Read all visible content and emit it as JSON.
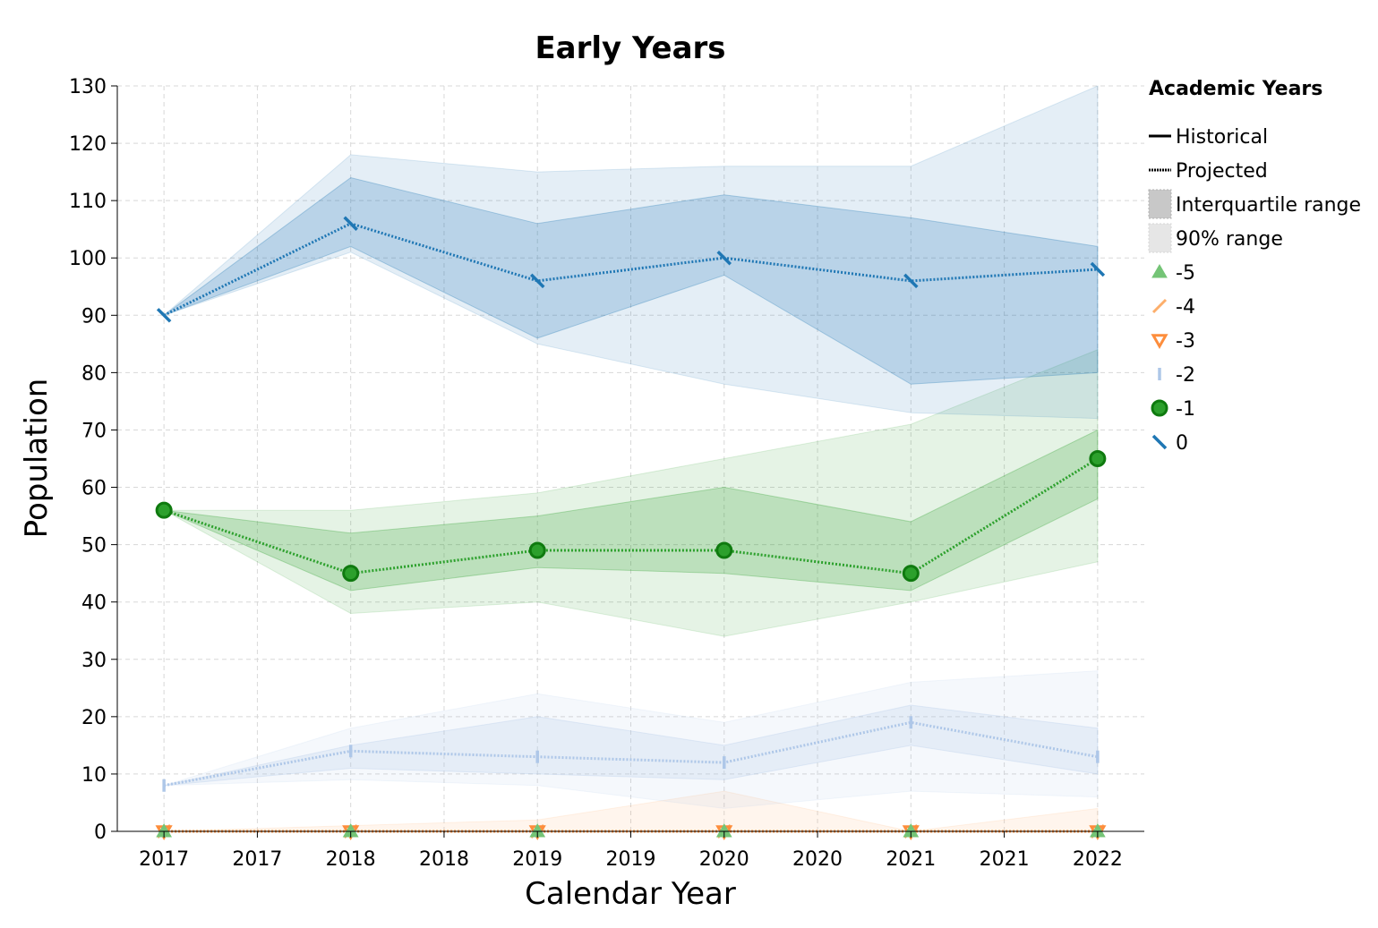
{
  "chart_data": {
    "type": "line",
    "title": "Early Years",
    "xlabel": "Calendar Year",
    "ylabel": "Population",
    "x": [
      2017,
      2018,
      2019,
      2020,
      2021,
      2022
    ],
    "x_tick_labels": [
      "2017",
      "2017",
      "2018",
      "2018",
      "2019",
      "2019",
      "2020",
      "2020",
      "2021",
      "2021",
      "2022"
    ],
    "y_ticks": [
      0,
      10,
      20,
      30,
      40,
      50,
      60,
      70,
      80,
      90,
      100,
      110,
      120,
      130
    ],
    "ylim": [
      0,
      130
    ],
    "xlim": [
      2016.75,
      2022.25
    ],
    "grid": true,
    "legend_placement": "right",
    "legend": {
      "title": "Academic Years",
      "style_entries": [
        "Historical",
        "Projected",
        "Interquartile range",
        "90% range"
      ]
    },
    "series": [
      {
        "name": "-5",
        "color": "#74c476",
        "marker": "triangle-up",
        "values": [
          0,
          0,
          0,
          0,
          0,
          0
        ],
        "iqr_low": [
          0,
          0,
          0,
          0,
          0,
          0
        ],
        "iqr_high": [
          0,
          0,
          0,
          0,
          0,
          0
        ],
        "p90_low": [
          0,
          0,
          0,
          0,
          0,
          0
        ],
        "p90_high": [
          0,
          0,
          0,
          0,
          0,
          0
        ]
      },
      {
        "name": "-4",
        "color": "#fdae6b",
        "marker": "slash",
        "values": [
          0,
          0,
          0,
          0,
          0,
          0
        ],
        "iqr_low": [
          0,
          0,
          0,
          0,
          0,
          0
        ],
        "iqr_high": [
          0,
          0,
          0,
          0,
          0,
          0
        ],
        "p90_low": [
          0,
          0,
          0,
          0,
          0,
          0
        ],
        "p90_high": [
          0,
          1,
          2,
          7,
          0,
          4
        ]
      },
      {
        "name": "-3",
        "color": "#fd8d3c",
        "marker": "triangle-down",
        "values": [
          0,
          0,
          0,
          0,
          0,
          0
        ],
        "iqr_low": [
          0,
          0,
          0,
          0,
          0,
          0
        ],
        "iqr_high": [
          0,
          0,
          0,
          0,
          0,
          0
        ],
        "p90_low": [
          0,
          0,
          0,
          0,
          0,
          0
        ],
        "p90_high": [
          0,
          0,
          0,
          0,
          0,
          0
        ]
      },
      {
        "name": "-2",
        "color": "#aec7e8",
        "marker": "vline",
        "values": [
          8,
          14,
          13,
          12,
          19,
          13
        ],
        "iqr_low": [
          8,
          11,
          10,
          9,
          15,
          10
        ],
        "iqr_high": [
          8,
          15,
          20,
          15,
          22,
          18
        ],
        "p90_low": [
          8,
          9,
          8,
          4,
          7,
          6
        ],
        "p90_high": [
          8,
          18,
          24,
          19,
          26,
          28
        ]
      },
      {
        "name": "-1",
        "color": "#2ca02c",
        "marker": "circle",
        "values": [
          56,
          45,
          49,
          49,
          45,
          65
        ],
        "iqr_low": [
          56,
          42,
          46,
          45,
          42,
          58
        ],
        "iqr_high": [
          56,
          52,
          55,
          60,
          54,
          70
        ],
        "p90_low": [
          56,
          38,
          40,
          34,
          40,
          47
        ],
        "p90_high": [
          56,
          56,
          59,
          65,
          71,
          84
        ]
      },
      {
        "name": "0",
        "color": "#1f77b4",
        "marker": "backslash",
        "values": [
          90,
          106,
          96,
          100,
          96,
          98
        ],
        "iqr_low": [
          90,
          102,
          86,
          97,
          78,
          80
        ],
        "iqr_high": [
          90,
          114,
          106,
          111,
          107,
          102
        ],
        "p90_low": [
          90,
          101,
          85,
          78,
          73,
          72
        ],
        "p90_high": [
          90,
          118,
          115,
          116,
          116,
          130
        ]
      }
    ]
  }
}
